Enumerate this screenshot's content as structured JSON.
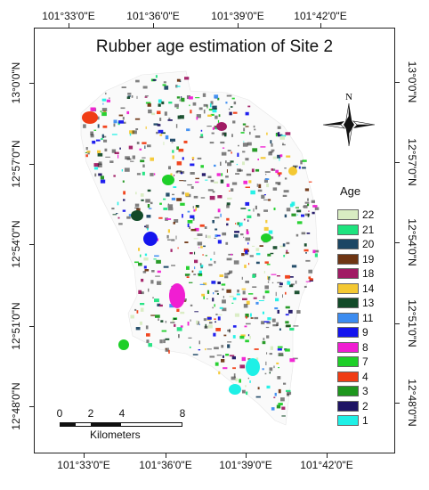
{
  "map": {
    "title": "Rubber age estimation of Site 2",
    "longitude_labels_top": [
      "101°33'0\"E",
      "101°36'0\"E",
      "101°39'0\"E",
      "101°42'0\"E"
    ],
    "longitude_labels_bottom": [
      "101°33'0\"E",
      "101°36'0\"E",
      "101°39'0\"E",
      "101°42'0\"E"
    ],
    "latitude_labels_left": [
      "13°0'0\"N",
      "12°57'0\"N",
      "12°54'0\"N",
      "12°51'0\"N",
      "12°48'0\"N"
    ],
    "latitude_labels_right": [
      "13°0'0\"N",
      "12°57'0\"N",
      "12°54'0\"N",
      "12°51'0\"N",
      "12°48'0\"N"
    ],
    "north_arrow_label": "N"
  },
  "legend": {
    "title": "Age",
    "items": [
      {
        "label": "22",
        "color": "#d8ecc2"
      },
      {
        "label": "21",
        "color": "#1ee37e"
      },
      {
        "label": "20",
        "color": "#1b4664"
      },
      {
        "label": "19",
        "color": "#6e3513"
      },
      {
        "label": "18",
        "color": "#a01b64"
      },
      {
        "label": "14",
        "color": "#f4c832"
      },
      {
        "label": "13",
        "color": "#124a28"
      },
      {
        "label": "11",
        "color": "#3c8cf0"
      },
      {
        "label": "9",
        "color": "#1414ee"
      },
      {
        "label": "8",
        "color": "#f01ed2"
      },
      {
        "label": "7",
        "color": "#1ecf28"
      },
      {
        "label": "4",
        "color": "#f03c14"
      },
      {
        "label": "3",
        "color": "#1e961e"
      },
      {
        "label": "2",
        "color": "#1e1464"
      },
      {
        "label": "1",
        "color": "#1ef0e6"
      }
    ]
  },
  "scale_bar": {
    "ticks": [
      "0",
      "2",
      "4",
      "8"
    ],
    "unit": "Kilometers"
  }
}
